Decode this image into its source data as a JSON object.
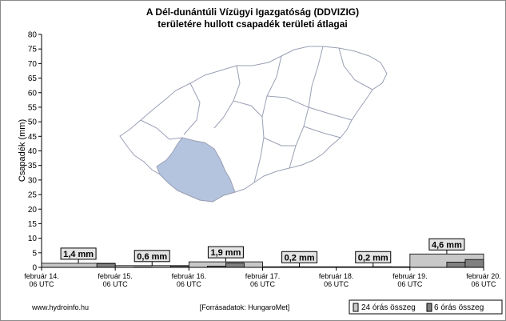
{
  "chart_data": {
    "type": "bar",
    "title_line1": "A Dél-dunántúli Vízügyi Igazgatóság (DDVIZIG)",
    "title_line2": "területére hullott csapadék területi átlagai",
    "ylabel": "Csapadék (mm)",
    "ylim": [
      0,
      80
    ],
    "yticks": [
      0,
      5,
      10,
      15,
      20,
      25,
      30,
      35,
      40,
      45,
      50,
      55,
      60,
      65,
      70,
      75,
      80
    ],
    "xlim_days": [
      0,
      6
    ],
    "x_ticks": [
      {
        "day": 0,
        "line1": "február 14.",
        "line2": "06 UTC"
      },
      {
        "day": 1,
        "line1": "február 15.",
        "line2": "06 UTC"
      },
      {
        "day": 2,
        "line1": "február 16.",
        "line2": "06 UTC"
      },
      {
        "day": 3,
        "line1": "február 17.",
        "line2": "06 UTC"
      },
      {
        "day": 4,
        "line1": "február 18.",
        "line2": "06 UTC"
      },
      {
        "day": 5,
        "line1": "február 19.",
        "line2": "06 UTC"
      },
      {
        "day": 6,
        "line1": "február 20.",
        "line2": "06 UTC"
      }
    ],
    "series": [
      {
        "name": "24 órás összeg",
        "color": "#c8c8c8",
        "values": [
          1.4,
          0.6,
          1.9,
          0.2,
          0.2,
          4.6
        ]
      },
      {
        "name": "6 órás összeg",
        "color": "#808080",
        "values": [
          0,
          0,
          0,
          1.3,
          0,
          0.1,
          0,
          0.5,
          0,
          0.4,
          1.5,
          0,
          0,
          0.2,
          0,
          0,
          0,
          0,
          0.2,
          0,
          0,
          0,
          1.8,
          2.7
        ]
      }
    ],
    "value_labels": [
      "1,4 mm",
      "0,6 mm",
      "1,9 mm",
      "0,2 mm",
      "0,2 mm",
      "4,6 mm"
    ],
    "legend_position": "bottom-right",
    "grid": false
  },
  "footer": {
    "website": "www.hydroinfo.hu",
    "source": "[Forrásadatok: HungaroMet]"
  }
}
